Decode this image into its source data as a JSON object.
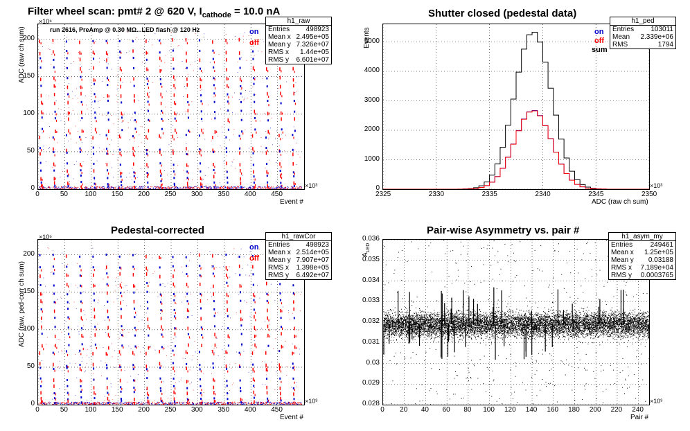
{
  "top_title": {
    "main": "Filter wheel scan: pmt#   2 @   620 V, I",
    "sub": "cathode",
    "tail": " = 10.0 nA"
  },
  "panels": {
    "raw": {
      "ylabel": "ADC (raw ch sum)",
      "xlabel": "Event #",
      "note": "run 2616, PreAmp @ 0.30 MΩ...LED flash @  120 Hz",
      "y_exp": "×10⁶",
      "x_exp": "×10³",
      "legend": [
        {
          "label": "on",
          "color": "#0000cc"
        },
        {
          "label": "off",
          "color": "#ff0000"
        }
      ],
      "stats": {
        "name": "h1_raw",
        "rows": [
          [
            "Entries",
            "498923"
          ],
          [
            "Mean x",
            "2.495e+05"
          ],
          [
            "Mean y",
            "7.326e+07"
          ],
          [
            "RMS x",
            "1.44e+05"
          ],
          [
            "RMS y",
            "6.601e+07"
          ]
        ]
      },
      "xticks": [
        "0",
        "50",
        "100",
        "150",
        "200",
        "250",
        "300",
        "350",
        "400",
        "450"
      ],
      "yticks": [
        "0",
        "50",
        "100",
        "150",
        "200"
      ]
    },
    "ped": {
      "title": "Shutter closed (pedestal data)",
      "ylabel": "Events",
      "xlabel": "ADC (raw ch sum)",
      "x_exp": "×10³",
      "legend": [
        {
          "label": "on",
          "color": "#0000cc"
        },
        {
          "label": "off",
          "color": "#ff0000"
        },
        {
          "label": "sum",
          "color": "#000000"
        }
      ],
      "stats": {
        "name": "h1_ped",
        "rows": [
          [
            "Entries",
            "103011"
          ],
          [
            "Mean",
            "2.339e+06"
          ],
          [
            "RMS",
            "1794"
          ]
        ]
      },
      "xticks": [
        "2325",
        "2330",
        "2335",
        "2340",
        "2345",
        "2350"
      ],
      "yticks": [
        "0",
        "1000",
        "2000",
        "3000",
        "4000",
        "5000"
      ]
    },
    "cor": {
      "title": "Pedestal-corrected",
      "ylabel": "ADC (raw, ped-corr ch sum)",
      "xlabel": "Event #",
      "y_exp": "×10⁶",
      "x_exp": "×10³",
      "legend": [
        {
          "label": "on",
          "color": "#0000cc"
        },
        {
          "label": "off",
          "color": "#ff0000"
        }
      ],
      "stats": {
        "name": "h1_rawCor",
        "rows": [
          [
            "Entries",
            "498923"
          ],
          [
            "Mean x",
            "2.514e+05"
          ],
          [
            "Mean y",
            "7.907e+07"
          ],
          [
            "RMS x",
            "1.398e+05"
          ],
          [
            "RMS y",
            "6.492e+07"
          ]
        ]
      },
      "xticks": [
        "0",
        "50",
        "100",
        "150",
        "200",
        "250",
        "300",
        "350",
        "400",
        "450"
      ],
      "yticks": [
        "0",
        "50",
        "100",
        "150",
        "200"
      ]
    },
    "asym": {
      "title": "Pair-wise Asymmetry vs. pair #",
      "ylabel": "A",
      "ylabel_sub": "LED",
      "xlabel": "Pair #",
      "x_exp": "×10³",
      "stats": {
        "name": "h1_asym_my",
        "rows": [
          [
            "Entries",
            "249461"
          ],
          [
            "Mean x",
            "1.25e+05"
          ],
          [
            "Mean y",
            "0.03188"
          ],
          [
            "RMS x",
            "7.189e+04"
          ],
          [
            "RMS y",
            "0.0003765"
          ]
        ]
      },
      "xticks": [
        "0",
        "20",
        "40",
        "60",
        "80",
        "100",
        "120",
        "140",
        "160",
        "180",
        "200",
        "220",
        "240"
      ],
      "yticks": [
        "0.028",
        "0.029",
        "0.03",
        "0.031",
        "0.032",
        "0.033",
        "0.034",
        "0.035",
        "0.036"
      ]
    }
  },
  "chart_data": [
    {
      "type": "scatter",
      "name": "h1_raw",
      "xlabel": "Event #",
      "ylabel": "ADC (raw ch sum)",
      "xlim": [
        0,
        500
      ],
      "ylim": [
        0,
        220
      ],
      "levels": [
        200,
        185,
        175,
        162,
        150,
        140,
        128,
        118,
        105,
        95,
        80,
        72,
        55,
        50,
        35,
        25,
        18,
        10,
        5
      ],
      "period": 25,
      "series": [
        {
          "name": "on",
          "color": "#0000cc"
        },
        {
          "name": "off",
          "color": "#ff0000"
        }
      ]
    },
    {
      "type": "line",
      "name": "h1_ped",
      "xlabel": "ADC (raw ch sum)",
      "ylabel": "Events",
      "xlim": [
        2325,
        2350
      ],
      "ylim": [
        0,
        5600
      ],
      "x": [
        2332,
        2333,
        2334,
        2335,
        2336,
        2337,
        2338,
        2339,
        2340,
        2341,
        2342,
        2343,
        2344,
        2345,
        2346
      ],
      "series": [
        {
          "name": "sum",
          "color": "#000000",
          "values": [
            10,
            40,
            180,
            600,
            1600,
            3100,
            4600,
            5350,
            4800,
            3400,
            1800,
            700,
            200,
            50,
            10
          ]
        },
        {
          "name": "on",
          "color": "#0000cc",
          "values": [
            5,
            20,
            90,
            300,
            800,
            1550,
            2300,
            2680,
            2400,
            1700,
            900,
            350,
            100,
            25,
            5
          ]
        },
        {
          "name": "off",
          "color": "#ff0000",
          "values": [
            5,
            20,
            92,
            302,
            805,
            1560,
            2310,
            2670,
            2390,
            1690,
            905,
            352,
            100,
            25,
            5
          ]
        }
      ]
    },
    {
      "type": "scatter",
      "name": "h1_rawCor",
      "xlabel": "Event #",
      "ylabel": "ADC (raw, ped-corr ch sum)",
      "xlim": [
        0,
        500
      ],
      "ylim": [
        0,
        220
      ],
      "levels": [
        200,
        185,
        175,
        162,
        150,
        140,
        128,
        118,
        105,
        95,
        80,
        72,
        55,
        50,
        35,
        25,
        18,
        10,
        5
      ],
      "period": 25,
      "series": [
        {
          "name": "on",
          "color": "#0000cc"
        },
        {
          "name": "off",
          "color": "#ff0000"
        }
      ]
    },
    {
      "type": "scatter",
      "name": "h1_asym_my",
      "xlabel": "Pair #",
      "ylabel": "A_LED",
      "xlim": [
        0,
        250
      ],
      "ylim": [
        0.028,
        0.036
      ],
      "center": 0.0319,
      "spread": 0.0004
    }
  ]
}
